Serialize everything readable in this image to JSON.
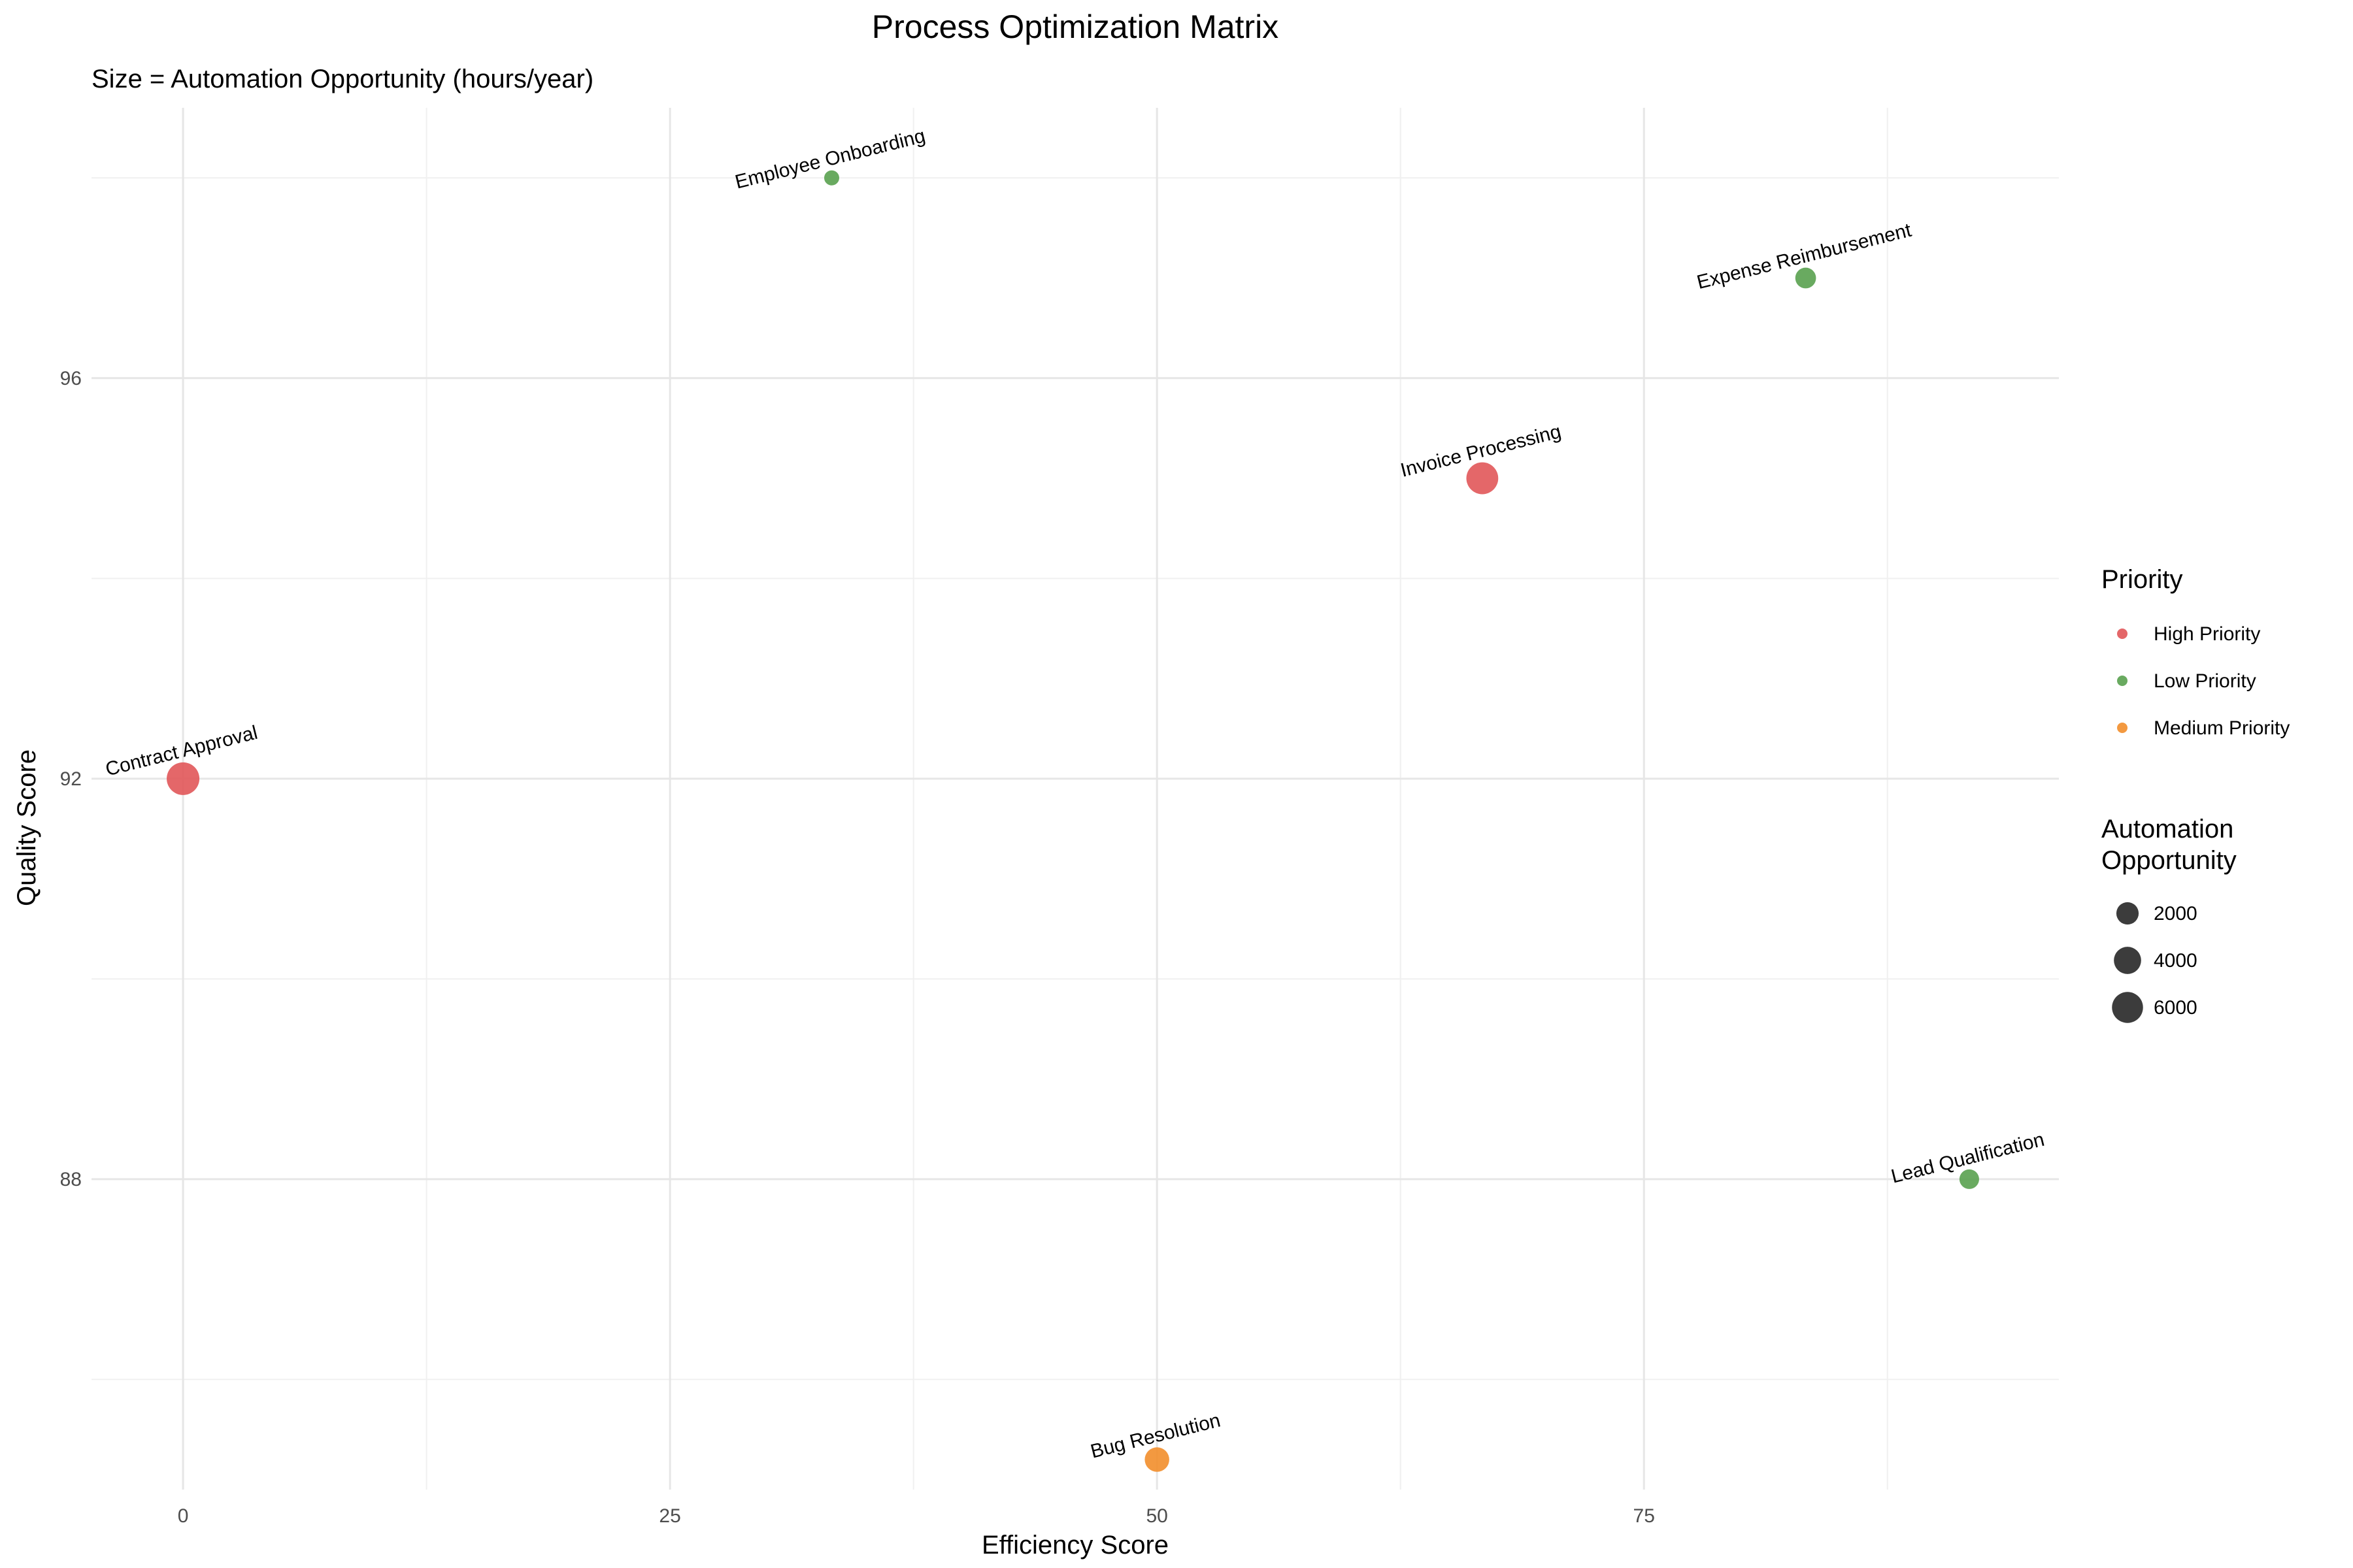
{
  "chart_data": {
    "type": "scatter",
    "title": "Process Optimization Matrix",
    "subtitle": "Size = Automation Opportunity (hours/year)",
    "xlabel": "Efficiency Score",
    "ylabel": "Quality Score",
    "xlim": [
      -4.7,
      96.3
    ],
    "ylim": [
      84.9,
      98.7
    ],
    "x_ticks": [
      0,
      25,
      50,
      75
    ],
    "x_ticks_labels": [
      "0",
      "25",
      "50",
      "75"
    ],
    "y_ticks": [
      88,
      92,
      96
    ],
    "y_ticks_labels": [
      "88",
      "92",
      "96"
    ],
    "x_minor_grid": [
      12.5,
      37.5,
      62.5,
      87.5
    ],
    "y_minor_grid": [
      86,
      90,
      94,
      98
    ],
    "grid": true,
    "label_rotation_deg": -14,
    "points": [
      {
        "label": "Employee Onboarding",
        "x": 33.3,
        "y": 98.0,
        "size": 300,
        "priority": "Low Priority"
      },
      {
        "label": "Expense Reimbursement",
        "x": 83.3,
        "y": 97.0,
        "size": 1500,
        "priority": "Low Priority"
      },
      {
        "label": "Invoice Processing",
        "x": 66.7,
        "y": 95.0,
        "size": 6500,
        "priority": "High Priority"
      },
      {
        "label": "Contract Approval",
        "x": 0.0,
        "y": 92.0,
        "size": 7000,
        "priority": "High Priority"
      },
      {
        "label": "Lead Qualification",
        "x": 91.7,
        "y": 88.0,
        "size": 1200,
        "priority": "Low Priority"
      },
      {
        "label": "Bug Resolution",
        "x": 50.0,
        "y": 85.2,
        "size": 2800,
        "priority": "Medium Priority"
      }
    ],
    "legend": {
      "placement": "right",
      "color_title": "Priority",
      "color_entries": [
        {
          "name": "High Priority",
          "color": "#E15759"
        },
        {
          "name": "Low Priority",
          "color": "#59A14F"
        },
        {
          "name": "Medium Priority",
          "color": "#F28E2B"
        }
      ],
      "size_title_lines": [
        "Automation",
        "Opportunity"
      ],
      "size_entries": [
        {
          "label": "2000",
          "value": 2000
        },
        {
          "label": "4000",
          "value": 4000
        },
        {
          "label": "6000",
          "value": 6000
        }
      ]
    },
    "colors": {
      "High Priority": "#E15759",
      "Low Priority": "#59A14F",
      "Medium Priority": "#F28E2B"
    }
  }
}
